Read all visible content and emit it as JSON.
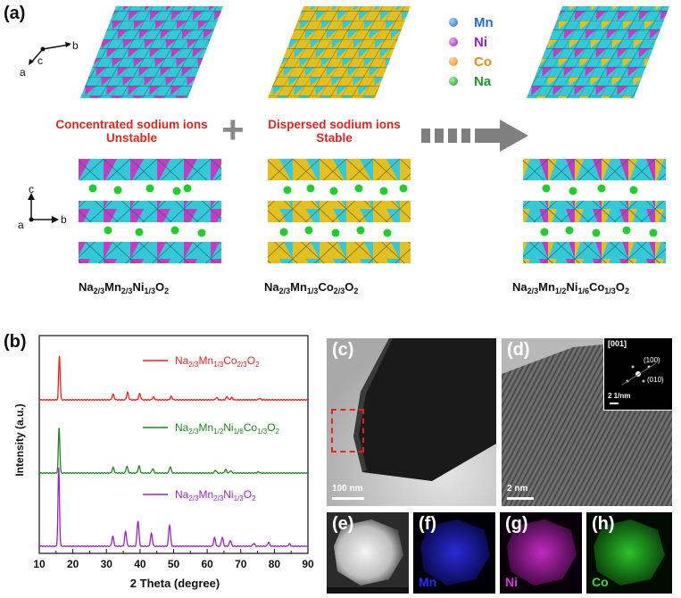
{
  "panel_a": {
    "label": "(a)",
    "axes_top": {
      "a": "a",
      "b": "b",
      "c": "c"
    },
    "axes_bottom": {
      "a": "a",
      "b": "b",
      "c": "c"
    },
    "legend": [
      {
        "element": "Mn",
        "color": "#1f6fc9"
      },
      {
        "element": "Ni",
        "color": "#9a22c9"
      },
      {
        "element": "Co",
        "color": "#f08a14"
      },
      {
        "element": "Na",
        "color": "#1f9a2a"
      }
    ],
    "text_left_line1": "Concentrated sodium ions",
    "text_left_line2": "Unstable",
    "text_mid_line1": "Dispersed sodium ions",
    "text_mid_line2": "Stable",
    "plus_symbol": "+",
    "formulas": [
      {
        "parts": [
          [
            "Na",
            ""
          ],
          [
            "2/3",
            "sub"
          ],
          [
            "Mn",
            ""
          ],
          [
            "2/3",
            "sub"
          ],
          [
            "Ni",
            ""
          ],
          [
            "1/3",
            "sub"
          ],
          [
            "O",
            ""
          ],
          [
            "2",
            "sub"
          ]
        ]
      },
      {
        "parts": [
          [
            "Na",
            ""
          ],
          [
            "2/3",
            "sub"
          ],
          [
            "Mn",
            ""
          ],
          [
            "1/3",
            "sub"
          ],
          [
            "Co",
            ""
          ],
          [
            "2/3",
            "sub"
          ],
          [
            "O",
            ""
          ],
          [
            "2",
            "sub"
          ]
        ]
      },
      {
        "parts": [
          [
            "Na",
            ""
          ],
          [
            "2/3",
            "sub"
          ],
          [
            "Mn",
            ""
          ],
          [
            "1/2",
            "sub"
          ],
          [
            "Ni",
            ""
          ],
          [
            "1/6",
            "sub"
          ],
          [
            "Co",
            ""
          ],
          [
            "1/3",
            "sub"
          ],
          [
            "O",
            ""
          ],
          [
            "2",
            "sub"
          ]
        ]
      }
    ],
    "colors": {
      "mn": "#35c8d6",
      "ni": "#c43bc4",
      "co": "#e3c021",
      "na": "#1fce2a",
      "arrow": "#7f7f7f"
    }
  },
  "panel_b": {
    "label": "(b)"
  },
  "chart_data": {
    "type": "line",
    "title": "",
    "xlabel": "2 Theta (degree)",
    "ylabel": "Intensity (a.u.)",
    "xlim": [
      10,
      90
    ],
    "xticks": [
      "10",
      "15",
      "20",
      "25",
      "30",
      "35",
      "40",
      "45",
      "50",
      "55",
      "60",
      "65",
      "70",
      "75",
      "80",
      "85",
      "90"
    ],
    "series": [
      {
        "name": "Na2/3Mn1/3Co2/3O2",
        "legend_parts": [
          [
            "Na",
            ""
          ],
          [
            "2/3",
            "sub"
          ],
          [
            "Mn",
            ""
          ],
          [
            "1/3",
            "sub"
          ],
          [
            "Co",
            ""
          ],
          [
            "2/3",
            "sub"
          ],
          [
            "O",
            ""
          ],
          [
            "2",
            "sub"
          ]
        ],
        "color": "#ff1a1a",
        "offset": 2.0,
        "peaks": [
          [
            16.0,
            0.95
          ],
          [
            32.0,
            0.12
          ],
          [
            36.3,
            0.16
          ],
          [
            39.9,
            0.13
          ],
          [
            44.0,
            0.06
          ],
          [
            49.3,
            0.07
          ],
          [
            62.8,
            0.05
          ],
          [
            65.9,
            0.07
          ],
          [
            67.3,
            0.05
          ],
          [
            75.6,
            0.03
          ]
        ]
      },
      {
        "name": "Na2/3Mn1/2Ni1/6Co1/3O2",
        "legend_parts": [
          [
            "Na",
            ""
          ],
          [
            "2/3",
            "sub"
          ],
          [
            "Mn",
            ""
          ],
          [
            "1/2",
            "sub"
          ],
          [
            "Ni",
            ""
          ],
          [
            "1/6",
            "sub"
          ],
          [
            "Co",
            ""
          ],
          [
            "1/3",
            "sub"
          ],
          [
            "O",
            ""
          ],
          [
            "2",
            "sub"
          ]
        ],
        "color": "#1a8a1a",
        "offset": 1.0,
        "peaks": [
          [
            15.9,
            1.15
          ],
          [
            32.0,
            0.14
          ],
          [
            36.1,
            0.17
          ],
          [
            39.7,
            0.18
          ],
          [
            43.8,
            0.11
          ],
          [
            49.0,
            0.16
          ],
          [
            62.5,
            0.07
          ],
          [
            65.5,
            0.09
          ],
          [
            67.0,
            0.06
          ],
          [
            75.2,
            0.03
          ]
        ]
      },
      {
        "name": "Na2/3Mn2/3Ni1/3O2",
        "legend_parts": [
          [
            "Na",
            ""
          ],
          [
            "2/3",
            "sub"
          ],
          [
            "Mn",
            ""
          ],
          [
            "2/3",
            "sub"
          ],
          [
            "Ni",
            ""
          ],
          [
            "1/3",
            "sub"
          ],
          [
            "O",
            ""
          ],
          [
            "2",
            "sub"
          ]
        ],
        "color": "#a020c8",
        "offset": 0.0,
        "peaks": [
          [
            15.8,
            1.6
          ],
          [
            31.9,
            0.2
          ],
          [
            35.7,
            0.3
          ],
          [
            39.4,
            0.52
          ],
          [
            43.4,
            0.26
          ],
          [
            48.8,
            0.43
          ],
          [
            62.2,
            0.17
          ],
          [
            64.5,
            0.18
          ],
          [
            66.9,
            0.12
          ],
          [
            73.9,
            0.06
          ],
          [
            78.3,
            0.08
          ],
          [
            84.5,
            0.05
          ]
        ]
      }
    ]
  },
  "panels_img": {
    "c": {
      "label": "(c)",
      "scale": "100 nm"
    },
    "d": {
      "label": "(d)",
      "scale": "2 nm",
      "saed_zone": "[001]",
      "saed_spot1": "(100)",
      "saed_spot2": "(010)",
      "saed_scale": "2 1/nm"
    },
    "e": {
      "label": "(e)"
    },
    "f": {
      "label": "(f)",
      "element": "Mn",
      "color": "#2a2aff"
    },
    "g": {
      "label": "(g)",
      "element": "Ni",
      "color": "#e030e0"
    },
    "h": {
      "label": "(h)",
      "element": "Co",
      "color": "#30e030"
    }
  }
}
